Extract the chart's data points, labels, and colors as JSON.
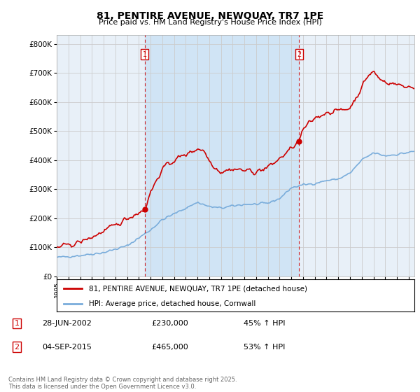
{
  "title": "81, PENTIRE AVENUE, NEWQUAY, TR7 1PE",
  "subtitle": "Price paid vs. HM Land Registry's House Price Index (HPI)",
  "annotation1": [
    "1",
    "28-JUN-2002",
    "£230,000",
    "45% ↑ HPI"
  ],
  "annotation2": [
    "2",
    "04-SEP-2015",
    "£465,000",
    "53% ↑ HPI"
  ],
  "legend1": "81, PENTIRE AVENUE, NEWQUAY, TR7 1PE (detached house)",
  "legend2": "HPI: Average price, detached house, Cornwall",
  "footnote": "Contains HM Land Registry data © Crown copyright and database right 2025.\nThis data is licensed under the Open Government Licence v3.0.",
  "property_color": "#cc0000",
  "hpi_color": "#7aaddb",
  "sale1_year": 2002.5,
  "sale1_value": 230000,
  "sale2_year": 2015.67,
  "sale2_value": 465000,
  "ylim_max": 830000,
  "xlim_min": 1995.0,
  "xlim_max": 2025.5,
  "background_color": "#e8f0f8",
  "shade_color": "#d0e4f5",
  "grid_color": "#cccccc",
  "outer_bg": "#ffffff"
}
